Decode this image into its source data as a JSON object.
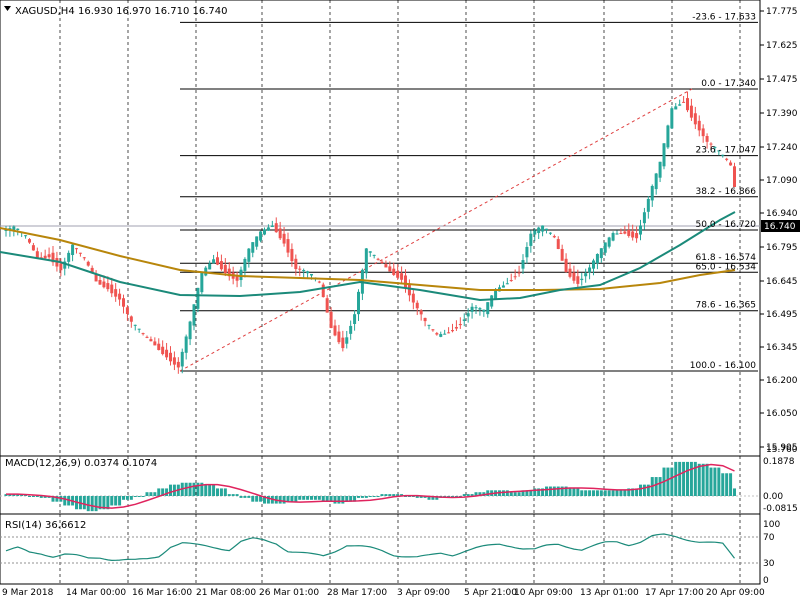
{
  "header": {
    "symbol": "XAGUSD,H4",
    "ohlc": "16.930 16.970 16.710 16.740"
  },
  "price_axis": {
    "ticks": [
      "17.775",
      "17.625",
      "17.475",
      "17.390",
      "17.240",
      "17.090",
      "16.940",
      "16.795",
      "16.645",
      "16.495",
      "16.345",
      "16.200",
      "16.050",
      "15.905",
      "15.760"
    ],
    "current_price": "16.740"
  },
  "time_axis": {
    "labels": [
      "9 Mar 2018",
      "14 Mar 00:00",
      "16 Mar 16:00",
      "21 Mar 08:00",
      "26 Mar 01:00",
      "28 Mar 17:00",
      "3 Apr 09:00",
      "5 Apr 21:00",
      "10 Apr 09:00",
      "13 Apr 01:00",
      "17 Apr 17:00",
      "20 Apr 09:00"
    ]
  },
  "fibonacci": {
    "levels": [
      {
        "label": "-23.6 - 17.633",
        "price": 17.633
      },
      {
        "label": "0.0 - 17.340",
        "price": 17.34
      },
      {
        "label": "23.6 - 17.047",
        "price": 17.047
      },
      {
        "label": "38.2 - 16.866",
        "price": 16.866
      },
      {
        "label": "50.0 - 16.720",
        "price": 16.72
      },
      {
        "label": "61.8 - 16.574",
        "price": 16.574
      },
      {
        "label": "65.0 - 16.534",
        "price": 16.534
      },
      {
        "label": "78.6 - 16.365",
        "price": 16.365
      },
      {
        "label": "100.0 - 16.100",
        "price": 16.1
      }
    ]
  },
  "macd": {
    "title": "MACD(12,26,9) 0.0374 0.1074",
    "ticks": [
      "0.1878",
      "0.00",
      "-0.0815"
    ]
  },
  "rsi": {
    "title": "RSI(14) 36.6612",
    "ticks": [
      "100",
      "70",
      "30",
      "0"
    ]
  },
  "colors": {
    "bull": "#26a69a",
    "bear": "#ef5350",
    "ma_fast": "#1b8a7a",
    "ma_slow": "#b8860b",
    "macd_hist": "#26a69a",
    "macd_signal": "#e0245e",
    "rsi_line": "#1b8a7a",
    "fib_line": "#000000",
    "trend_line": "#e04040"
  },
  "chart_data": {
    "type": "candlestick",
    "price_ylim": [
      15.76,
      17.8
    ],
    "close_series_approx": [
      16.72,
      16.68,
      16.6,
      16.62,
      16.55,
      16.64,
      16.58,
      16.5,
      16.48,
      16.42,
      16.3,
      16.25,
      16.22,
      16.18,
      16.12,
      16.3,
      16.52,
      16.6,
      16.55,
      16.5,
      16.62,
      16.7,
      16.75,
      16.68,
      16.55,
      16.52,
      16.48,
      16.3,
      16.22,
      16.35,
      16.62,
      16.58,
      16.55,
      16.52,
      16.4,
      16.3,
      16.25,
      16.28,
      16.32,
      16.38,
      16.35,
      16.45,
      16.5,
      16.55,
      16.7,
      16.72,
      16.68,
      16.55,
      16.5,
      16.55,
      16.62,
      16.7,
      16.72,
      16.7,
      16.85,
      17.0,
      17.25,
      17.3,
      17.2,
      17.1,
      17.05,
      17.0,
      16.74
    ],
    "macd_hist_approx": [
      0.01,
      0.01,
      0.0,
      -0.01,
      -0.03,
      -0.05,
      -0.07,
      -0.08,
      -0.07,
      -0.05,
      -0.02,
      0.0,
      0.02,
      0.04,
      0.06,
      0.07,
      0.07,
      0.06,
      0.04,
      0.01,
      -0.01,
      -0.03,
      -0.04,
      -0.04,
      -0.03,
      -0.02,
      -0.02,
      -0.03,
      -0.04,
      -0.03,
      -0.01,
      0.0,
      0.01,
      0.01,
      0.0,
      -0.01,
      -0.02,
      -0.01,
      0.0,
      0.01,
      0.02,
      0.03,
      0.03,
      0.02,
      0.03,
      0.04,
      0.05,
      0.05,
      0.04,
      0.03,
      0.03,
      0.03,
      0.03,
      0.04,
      0.06,
      0.1,
      0.15,
      0.18,
      0.18,
      0.17,
      0.15,
      0.12,
      0.04
    ],
    "rsi_approx": [
      48,
      52,
      45,
      44,
      40,
      43,
      40,
      36,
      38,
      35,
      34,
      33,
      35,
      40,
      55,
      60,
      57,
      55,
      53,
      50,
      62,
      66,
      64,
      60,
      48,
      45,
      42,
      40,
      48,
      57,
      55,
      52,
      48,
      42,
      40,
      38,
      40,
      44,
      42,
      48,
      52,
      55,
      58,
      56,
      52,
      50,
      55,
      58,
      54,
      50,
      55,
      60,
      62,
      58,
      62,
      70,
      72,
      70,
      66,
      62,
      60,
      58,
      37
    ]
  }
}
